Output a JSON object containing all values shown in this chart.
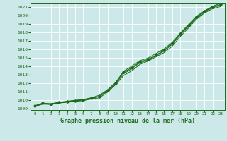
{
  "xlabel": "Graphe pression niveau de la mer (hPa)",
  "xlim": [
    -0.5,
    23.5
  ],
  "ylim": [
    1008.8,
    1021.5
  ],
  "yticks": [
    1009,
    1010,
    1011,
    1012,
    1013,
    1014,
    1015,
    1016,
    1017,
    1018,
    1019,
    1020,
    1021
  ],
  "xticks": [
    0,
    1,
    2,
    3,
    4,
    5,
    6,
    7,
    8,
    9,
    10,
    11,
    12,
    13,
    14,
    15,
    16,
    17,
    18,
    19,
    20,
    21,
    22,
    23
  ],
  "bg_color": "#cce8e8",
  "line_color": "#1a6b1a",
  "grid_color": "#ffffff",
  "hours": [
    0,
    1,
    2,
    3,
    4,
    5,
    6,
    7,
    8,
    9,
    10,
    11,
    12,
    13,
    14,
    15,
    16,
    17,
    18,
    19,
    20,
    21,
    22,
    23
  ],
  "pressure_main": [
    1009.3,
    1009.6,
    1009.5,
    1009.7,
    1009.8,
    1009.9,
    1010.0,
    1010.2,
    1010.4,
    1011.1,
    1012.0,
    1013.3,
    1013.8,
    1014.5,
    1014.8,
    1015.3,
    1015.9,
    1016.7,
    1017.8,
    1018.8,
    1019.8,
    1020.5,
    1021.0,
    1021.3
  ],
  "pressure_upper": [
    1009.3,
    1009.6,
    1009.55,
    1009.7,
    1009.85,
    1009.95,
    1010.05,
    1010.25,
    1010.55,
    1011.2,
    1012.05,
    1013.4,
    1014.0,
    1014.65,
    1014.95,
    1015.5,
    1016.05,
    1016.8,
    1017.9,
    1018.9,
    1019.9,
    1020.55,
    1021.1,
    1021.45
  ],
  "pressure_lower": [
    1009.2,
    1009.5,
    1009.45,
    1009.62,
    1009.72,
    1009.82,
    1009.9,
    1010.1,
    1010.25,
    1010.9,
    1011.8,
    1012.9,
    1013.45,
    1014.2,
    1014.6,
    1015.1,
    1015.6,
    1016.35,
    1017.5,
    1018.5,
    1019.55,
    1020.3,
    1020.8,
    1021.05
  ],
  "pressure_smooth": [
    1009.25,
    1009.55,
    1009.48,
    1009.65,
    1009.78,
    1009.88,
    1009.98,
    1010.18,
    1010.4,
    1011.0,
    1011.9,
    1013.1,
    1013.7,
    1014.38,
    1014.72,
    1015.22,
    1015.78,
    1016.58,
    1017.7,
    1018.68,
    1019.7,
    1020.42,
    1020.92,
    1021.2
  ]
}
